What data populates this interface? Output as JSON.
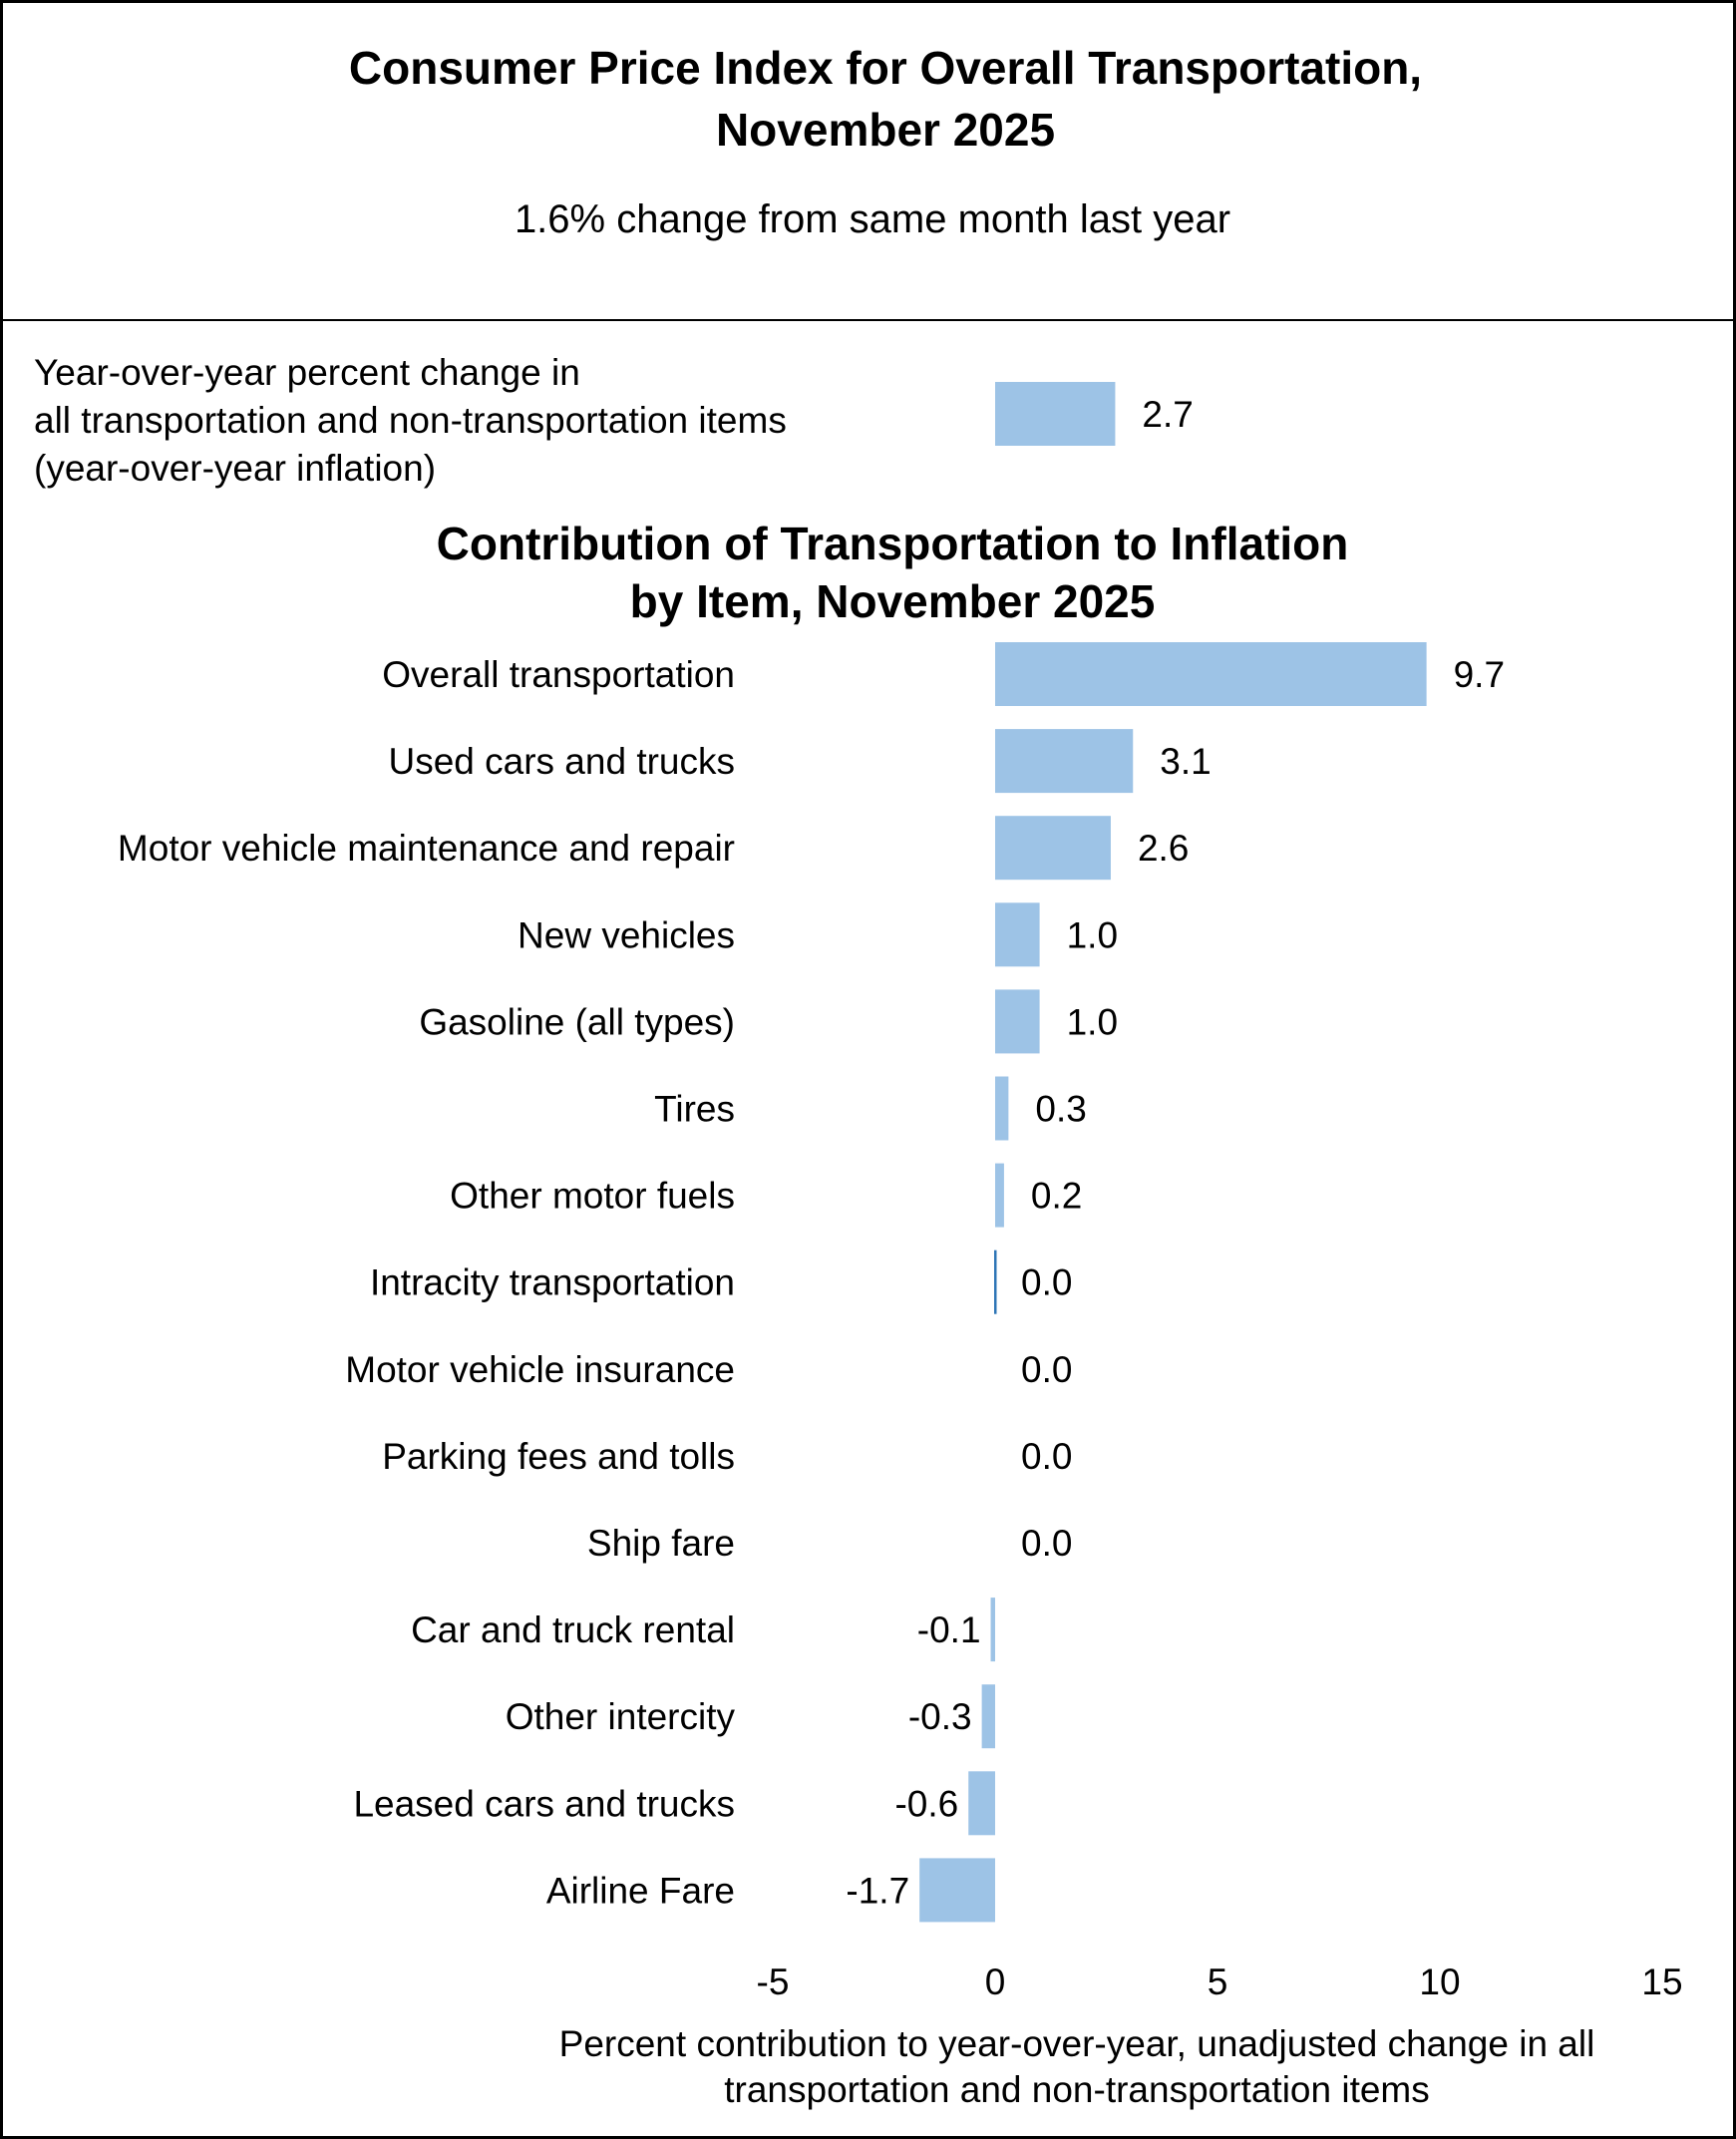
{
  "header": {
    "title_lines": [
      "Consumer Price Index for Overall Transportation,",
      "November 2025"
    ],
    "subtitle": "1.6% change from same month last year"
  },
  "headline": {
    "label_lines": [
      "Year-over-year percent change in",
      "all transportation and non-transportation items",
      "(year-over-year inflation)"
    ],
    "value": 2.7,
    "value_label": "2.7"
  },
  "chart_data": {
    "type": "bar",
    "orientation": "horizontal",
    "title_lines": [
      "Contribution of Transportation to Inflation",
      "by Item, November 2025"
    ],
    "categories": [
      "Overall transportation",
      "Used cars and trucks",
      "Motor vehicle maintenance and repair",
      "New vehicles",
      "Gasoline (all types)",
      "Tires",
      "Other motor fuels",
      "Intracity transportation",
      "Motor vehicle insurance",
      "Parking fees and tolls",
      "Ship fare",
      "Car and truck rental",
      "Other intercity",
      "Leased cars and trucks",
      "Airline Fare"
    ],
    "values": [
      9.7,
      3.1,
      2.6,
      1.0,
      1.0,
      0.3,
      0.2,
      0.0,
      0.0,
      0.0,
      0.0,
      -0.1,
      -0.3,
      -0.6,
      -1.7
    ],
    "value_labels": [
      "9.7",
      "3.1",
      "2.6",
      "1.0",
      "1.0",
      "0.3",
      "0.2",
      "0.0",
      "0.0",
      "0.0",
      "0.0",
      "-0.1",
      "-0.3",
      "-0.6",
      "-1.7"
    ],
    "xlim": [
      -5,
      15
    ],
    "xticks": [
      "-5",
      "0",
      "5",
      "10",
      "15"
    ],
    "xlabel_lines": [
      "Percent contribution to year-over-year, unadjusted change in all",
      "transportation and non-transportation items"
    ],
    "grid": false,
    "bar_color": "#9dc3e6",
    "zero_line_color": "#2e75b6"
  }
}
